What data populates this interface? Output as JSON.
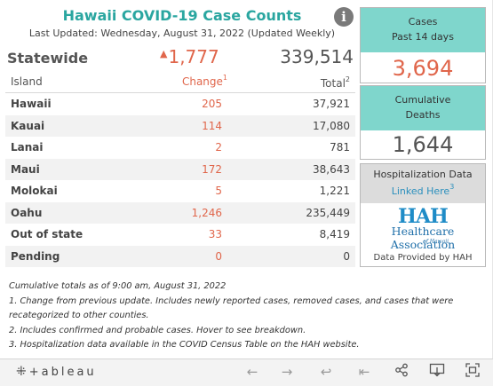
{
  "header": {
    "title": "Hawaii COVID-19 Case Counts",
    "updated": "Last Updated: Wednesday, August 31, 2022 (Updated Weekly)",
    "info_glyph": "i"
  },
  "statewide": {
    "label": "Statewide",
    "change_arrow": "▲",
    "change": "1,777",
    "total": "339,514"
  },
  "table": {
    "col_island": "Island",
    "col_change": "Change",
    "col_change_note": "1",
    "col_total": "Total",
    "col_total_note": "2",
    "rows": [
      {
        "island": "Hawaii",
        "change": "205",
        "total": "37,921"
      },
      {
        "island": "Kauai",
        "change": "114",
        "total": "17,080"
      },
      {
        "island": "Lanai",
        "change": "2",
        "total": "781"
      },
      {
        "island": "Maui",
        "change": "172",
        "total": "38,643"
      },
      {
        "island": "Molokai",
        "change": "5",
        "total": "1,221"
      },
      {
        "island": "Oahu",
        "change": "1,246",
        "total": "235,449"
      },
      {
        "island": "Out of state",
        "change": "33",
        "total": "8,419"
      },
      {
        "island": "Pending",
        "change": "0",
        "total": "0"
      }
    ]
  },
  "kpis": {
    "cases_line1": "Cases",
    "cases_line2": "Past 14 days",
    "cases_value": "3,694",
    "deaths_line1": "Cumulative",
    "deaths_line2": "Deaths",
    "deaths_value": "1,644"
  },
  "hospitalization": {
    "title": "Hospitalization Data",
    "link": "Linked Here",
    "link_note": "3",
    "logo_letters": "HAH",
    "logo_name": "Healthcare Association",
    "logo_sub": "of Hawaii",
    "provided": "Data Provided by HAH"
  },
  "notes": [
    "Cumulative totals as of 9:00 am, August 31, 2022",
    "1. Change from previous update. Includes newly reported cases, removed cases, and cases that were",
    "recategorized to other counties.",
    "2. Includes confirmed and probable cases. Hover to see breakdown.",
    "3. Hospitalization data available in the COVID Census Table on the HAH website."
  ],
  "toolbar": {
    "logo": "+ableau",
    "logo_cross": "⁜",
    "undo_icon": "←",
    "redo_icon": "→",
    "revert_icon": "↩",
    "reset_icon": "⇤",
    "share_icon": "share-icon",
    "download_icon": "download-icon",
    "fullscreen_icon": "fullscreen-icon"
  }
}
